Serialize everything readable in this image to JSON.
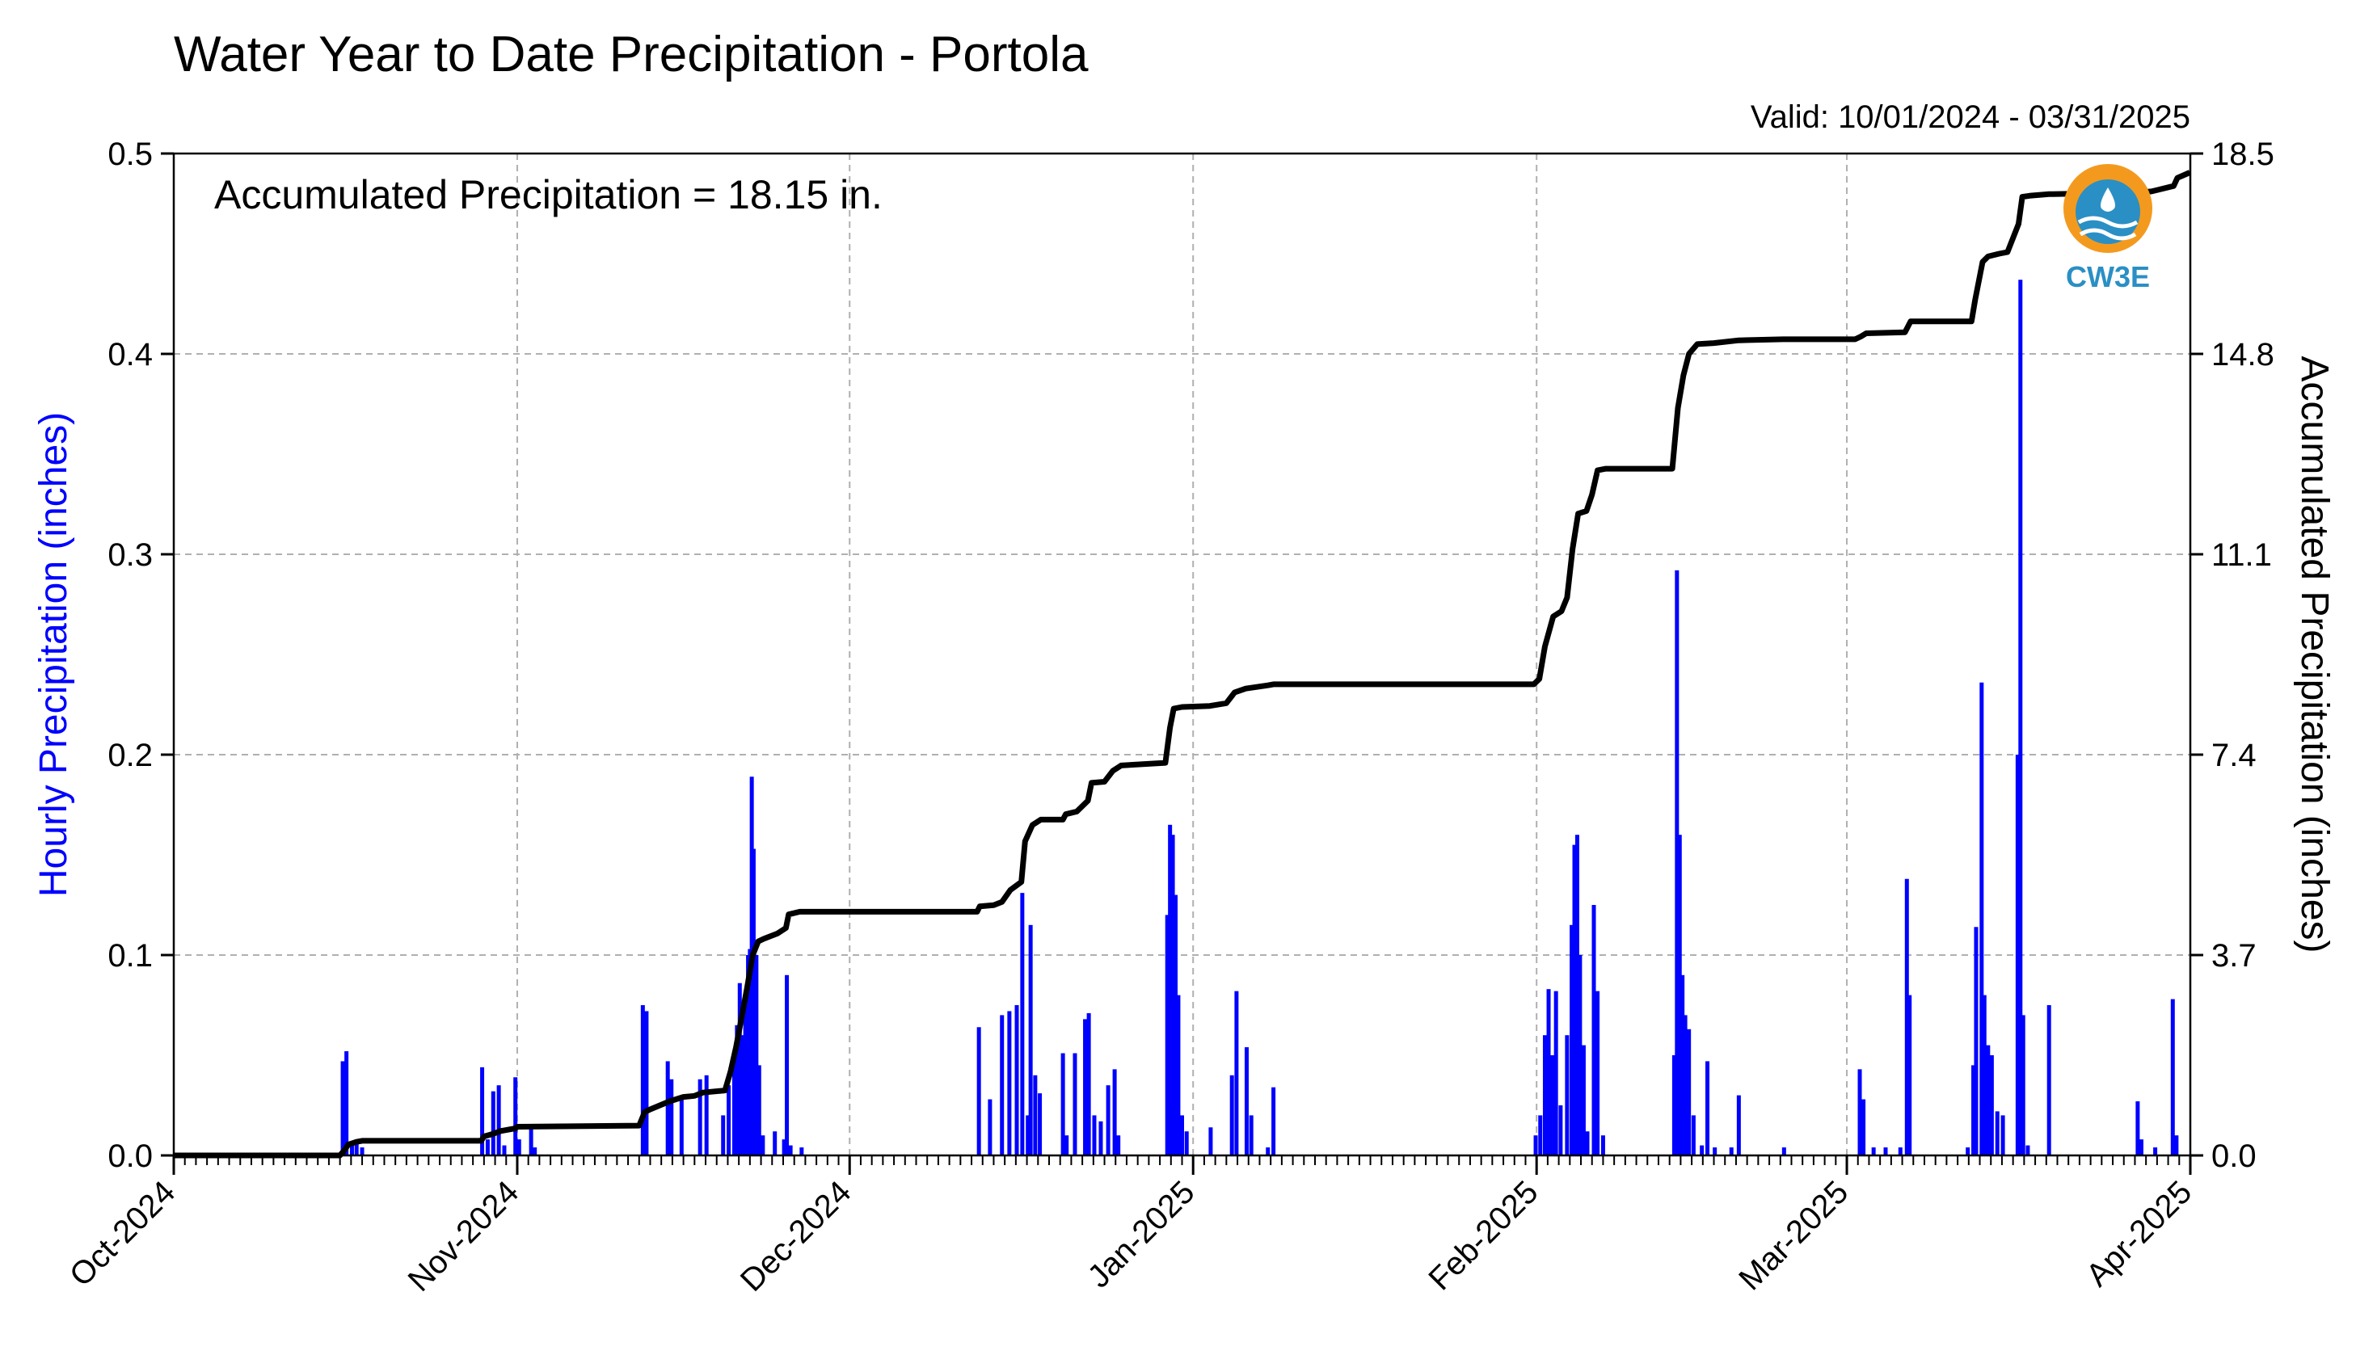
{
  "chart_data": {
    "type": "bar+line",
    "title": "Water Year to Date Precipitation - Portola",
    "valid_range": "Valid: 10/01/2024 - 03/31/2025",
    "annotation": "Accumulated Precipitation = 18.15 in.",
    "logo_text": "CW3E",
    "ylabel_left": "Hourly Precipitation (inches)",
    "ylabel_right": "Accumulated Precipitation (inches)",
    "xlabel": "",
    "xlim": [
      "2024-10-01",
      "2025-04-01"
    ],
    "ylim_left": [
      0,
      0.5
    ],
    "ylim_right": [
      0,
      18.5
    ],
    "x_ticks": [
      "Oct-2024",
      "Nov-2024",
      "Dec-2024",
      "Jan-2025",
      "Feb-2025",
      "Mar-2025",
      "Apr-2025"
    ],
    "y_ticks_left": [
      "0.0",
      "0.1",
      "0.2",
      "0.3",
      "0.4",
      "0.5"
    ],
    "y_ticks_right": [
      "0.0",
      "3.7",
      "7.4",
      "11.1",
      "14.8",
      "18.5"
    ],
    "grid": true,
    "colors": {
      "hourly": "#0000ff",
      "accumulated": "#000000",
      "grid": "#b0b0b0",
      "logo_orange": "#f39a1e",
      "logo_blue": "#2a8fc4"
    },
    "series": [
      {
        "name": "Hourly Precipitation",
        "axis": "left",
        "kind": "bar",
        "points": [
          [
            "2024-10-16 06:00",
            0.047
          ],
          [
            "2024-10-16 14:00",
            0.052
          ],
          [
            "2024-10-17 02:00",
            0.006
          ],
          [
            "2024-10-17 12:00",
            0.008
          ],
          [
            "2024-10-18 00:00",
            0.004
          ],
          [
            "2024-10-28 20:00",
            0.044
          ],
          [
            "2024-10-29 08:00",
            0.008
          ],
          [
            "2024-10-29 20:00",
            0.032
          ],
          [
            "2024-10-30 08:00",
            0.035
          ],
          [
            "2024-10-30 20:00",
            0.005
          ],
          [
            "2024-10-31 20:00",
            0.039
          ],
          [
            "2024-11-01 04:00",
            0.008
          ],
          [
            "2024-11-02 06:00",
            0.014
          ],
          [
            "2024-11-02 14:00",
            0.004
          ],
          [
            "2024-11-12 08:00",
            0.075
          ],
          [
            "2024-11-12 16:00",
            0.072
          ],
          [
            "2024-11-14 14:00",
            0.047
          ],
          [
            "2024-11-14 22:00",
            0.038
          ],
          [
            "2024-11-15 20:00",
            0.028
          ],
          [
            "2024-11-17 12:00",
            0.038
          ],
          [
            "2024-11-18 02:00",
            0.04
          ],
          [
            "2024-11-19 14:00",
            0.02
          ],
          [
            "2024-11-20 02:00",
            0.035
          ],
          [
            "2024-11-20 14:00",
            0.052
          ],
          [
            "2024-11-20 20:00",
            0.065
          ],
          [
            "2024-11-21 02:00",
            0.086
          ],
          [
            "2024-11-21 08:00",
            0.06
          ],
          [
            "2024-11-21 14:00",
            0.075
          ],
          [
            "2024-11-21 20:00",
            0.1
          ],
          [
            "2024-11-22 00:00",
            0.103
          ],
          [
            "2024-11-22 04:00",
            0.189
          ],
          [
            "2024-11-22 08:00",
            0.153
          ],
          [
            "2024-11-22 14:00",
            0.1
          ],
          [
            "2024-11-22 20:00",
            0.045
          ],
          [
            "2024-11-23 04:00",
            0.01
          ],
          [
            "2024-11-24 06:00",
            0.012
          ],
          [
            "2024-11-25 02:00",
            0.008
          ],
          [
            "2024-11-25 08:00",
            0.09
          ],
          [
            "2024-11-25 16:00",
            0.005
          ],
          [
            "2024-11-26 16:00",
            0.004
          ],
          [
            "2024-12-12 16:00",
            0.064
          ],
          [
            "2024-12-13 16:00",
            0.028
          ],
          [
            "2024-12-14 18:00",
            0.07
          ],
          [
            "2024-12-15 10:00",
            0.072
          ],
          [
            "2024-12-16 02:00",
            0.075
          ],
          [
            "2024-12-16 14:00",
            0.131
          ],
          [
            "2024-12-17 02:00",
            0.02
          ],
          [
            "2024-12-17 08:00",
            0.115
          ],
          [
            "2024-12-17 18:00",
            0.04
          ],
          [
            "2024-12-18 04:00",
            0.031
          ],
          [
            "2024-12-20 06:00",
            0.051
          ],
          [
            "2024-12-20 14:00",
            0.01
          ],
          [
            "2024-12-21 08:00",
            0.051
          ],
          [
            "2024-12-22 06:00",
            0.068
          ],
          [
            "2024-12-22 14:00",
            0.071
          ],
          [
            "2024-12-23 02:00",
            0.02
          ],
          [
            "2024-12-23 16:00",
            0.017
          ],
          [
            "2024-12-24 08:00",
            0.035
          ],
          [
            "2024-12-24 22:00",
            0.043
          ],
          [
            "2024-12-25 06:00",
            0.01
          ],
          [
            "2024-12-29 16:00",
            0.12
          ],
          [
            "2024-12-29 22:00",
            0.165
          ],
          [
            "2024-12-30 04:00",
            0.16
          ],
          [
            "2024-12-30 10:00",
            0.13
          ],
          [
            "2024-12-30 16:00",
            0.08
          ],
          [
            "2024-12-31 00:00",
            0.02
          ],
          [
            "2024-12-31 10:00",
            0.012
          ],
          [
            "2025-01-02 14:00",
            0.014
          ],
          [
            "2025-01-04 12:00",
            0.04
          ],
          [
            "2025-01-04 22:00",
            0.082
          ],
          [
            "2025-01-05 20:00",
            0.054
          ],
          [
            "2025-01-06 06:00",
            0.02
          ],
          [
            "2025-01-07 18:00",
            0.004
          ],
          [
            "2025-01-08 06:00",
            0.034
          ],
          [
            "2025-01-31 22:00",
            0.01
          ],
          [
            "2025-02-01 08:00",
            0.02
          ],
          [
            "2025-02-01 18:00",
            0.06
          ],
          [
            "2025-02-02 02:00",
            0.083
          ],
          [
            "2025-02-02 10:00",
            0.05
          ],
          [
            "2025-02-02 18:00",
            0.082
          ],
          [
            "2025-02-03 04:00",
            0.025
          ],
          [
            "2025-02-03 18:00",
            0.06
          ],
          [
            "2025-02-04 04:00",
            0.115
          ],
          [
            "2025-02-04 10:00",
            0.155
          ],
          [
            "2025-02-04 16:00",
            0.16
          ],
          [
            "2025-02-04 22:00",
            0.1
          ],
          [
            "2025-02-05 06:00",
            0.055
          ],
          [
            "2025-02-05 14:00",
            0.012
          ],
          [
            "2025-02-06 04:00",
            0.125
          ],
          [
            "2025-02-06 12:00",
            0.082
          ],
          [
            "2025-02-07 00:00",
            0.01
          ],
          [
            "2025-02-13 10:00",
            0.05
          ],
          [
            "2025-02-13 16:00",
            0.292
          ],
          [
            "2025-02-13 22:00",
            0.16
          ],
          [
            "2025-02-14 04:00",
            0.09
          ],
          [
            "2025-02-14 10:00",
            0.07
          ],
          [
            "2025-02-14 18:00",
            0.063
          ],
          [
            "2025-02-15 04:00",
            0.02
          ],
          [
            "2025-02-15 22:00",
            0.005
          ],
          [
            "2025-02-16 10:00",
            0.047
          ],
          [
            "2025-02-17 02:00",
            0.004
          ],
          [
            "2025-02-18 14:00",
            0.004
          ],
          [
            "2025-02-19 06:00",
            0.03
          ],
          [
            "2025-02-23 08:00",
            0.004
          ],
          [
            "2025-03-02 04:00",
            0.043
          ],
          [
            "2025-03-02 12:00",
            0.028
          ],
          [
            "2025-03-03 10:00",
            0.004
          ],
          [
            "2025-03-04 12:00",
            0.004
          ],
          [
            "2025-03-05 20:00",
            0.004
          ],
          [
            "2025-03-06 10:00",
            0.138
          ],
          [
            "2025-03-06 16:00",
            0.08
          ],
          [
            "2025-03-11 22:00",
            0.004
          ],
          [
            "2025-03-12 10:00",
            0.045
          ],
          [
            "2025-03-12 16:00",
            0.114
          ],
          [
            "2025-03-13 04:00",
            0.236
          ],
          [
            "2025-03-13 10:00",
            0.08
          ],
          [
            "2025-03-13 18:00",
            0.055
          ],
          [
            "2025-03-14 02:00",
            0.05
          ],
          [
            "2025-03-14 14:00",
            0.022
          ],
          [
            "2025-03-15 02:00",
            0.02
          ],
          [
            "2025-03-16 10:00",
            0.2
          ],
          [
            "2025-03-16 16:00",
            0.437
          ],
          [
            "2025-03-16 22:00",
            0.07
          ],
          [
            "2025-03-17 08:00",
            0.005
          ],
          [
            "2025-03-19 06:00",
            0.075
          ],
          [
            "2025-03-27 06:00",
            0.027
          ],
          [
            "2025-03-27 14:00",
            0.008
          ],
          [
            "2025-03-28 20:00",
            0.004
          ],
          [
            "2025-03-30 10:00",
            0.078
          ],
          [
            "2025-03-30 18:00",
            0.01
          ]
        ]
      },
      {
        "name": "Accumulated Precipitation",
        "axis": "right",
        "kind": "step",
        "points": [
          [
            "2024-10-01 00:00",
            0.0
          ],
          [
            "2024-10-16 00:00",
            0.0
          ],
          [
            "2024-10-16 10:00",
            0.1
          ],
          [
            "2024-10-16 18:00",
            0.2
          ],
          [
            "2024-10-17 12:00",
            0.25
          ],
          [
            "2024-10-18 00:00",
            0.27
          ],
          [
            "2024-10-28 18:00",
            0.27
          ],
          [
            "2024-10-29 00:00",
            0.35
          ],
          [
            "2024-10-29 20:00",
            0.4
          ],
          [
            "2024-10-30 12:00",
            0.45
          ],
          [
            "2024-10-31 20:00",
            0.5
          ],
          [
            "2024-11-01 00:00",
            0.53
          ],
          [
            "2024-11-12 00:00",
            0.55
          ],
          [
            "2024-11-12 12:00",
            0.8
          ],
          [
            "2024-11-13 00:00",
            0.85
          ],
          [
            "2024-11-14 18:00",
            1.0
          ],
          [
            "2024-11-16 00:00",
            1.08
          ],
          [
            "2024-11-17 00:00",
            1.1
          ],
          [
            "2024-11-17 18:00",
            1.16
          ],
          [
            "2024-11-19 18:00",
            1.2
          ],
          [
            "2024-11-20 06:00",
            1.55
          ],
          [
            "2024-11-20 18:00",
            2.0
          ],
          [
            "2024-11-21 06:00",
            2.55
          ],
          [
            "2024-11-21 18:00",
            3.1
          ],
          [
            "2024-11-22 06:00",
            3.7
          ],
          [
            "2024-11-22 18:00",
            3.95
          ],
          [
            "2024-11-23 06:00",
            4.0
          ],
          [
            "2024-11-24 12:00",
            4.1
          ],
          [
            "2024-11-25 06:00",
            4.2
          ],
          [
            "2024-11-25 12:00",
            4.45
          ],
          [
            "2024-11-26 12:00",
            4.5
          ],
          [
            "2024-12-12 12:00",
            4.5
          ],
          [
            "2024-12-12 18:00",
            4.6
          ],
          [
            "2024-12-14 00:00",
            4.62
          ],
          [
            "2024-12-14 18:00",
            4.68
          ],
          [
            "2024-12-15 12:00",
            4.9
          ],
          [
            "2024-12-16 12:00",
            5.05
          ],
          [
            "2024-12-16 20:00",
            5.8
          ],
          [
            "2024-12-17 12:00",
            6.1
          ],
          [
            "2024-12-18 06:00",
            6.2
          ],
          [
            "2024-12-20 06:00",
            6.2
          ],
          [
            "2024-12-20 12:00",
            6.3
          ],
          [
            "2024-12-21 12:00",
            6.35
          ],
          [
            "2024-12-22 12:00",
            6.55
          ],
          [
            "2024-12-22 20:00",
            6.88
          ],
          [
            "2024-12-24 00:00",
            6.9
          ],
          [
            "2024-12-24 18:00",
            7.1
          ],
          [
            "2024-12-25 12:00",
            7.2
          ],
          [
            "2024-12-29 12:00",
            7.25
          ],
          [
            "2024-12-29 22:00",
            7.9
          ],
          [
            "2024-12-30 06:00",
            8.25
          ],
          [
            "2024-12-31 00:00",
            8.28
          ],
          [
            "2025-01-02 12:00",
            8.3
          ],
          [
            "2025-01-04 00:00",
            8.35
          ],
          [
            "2025-01-04 18:00",
            8.55
          ],
          [
            "2025-01-05 18:00",
            8.62
          ],
          [
            "2025-01-07 18:00",
            8.68
          ],
          [
            "2025-01-08 06:00",
            8.7
          ],
          [
            "2025-01-31 18:00",
            8.7
          ],
          [
            "2025-02-01 06:00",
            8.8
          ],
          [
            "2025-02-01 18:00",
            9.4
          ],
          [
            "2025-02-02 12:00",
            9.95
          ],
          [
            "2025-02-03 06:00",
            10.05
          ],
          [
            "2025-02-03 18:00",
            10.3
          ],
          [
            "2025-02-04 06:00",
            11.2
          ],
          [
            "2025-02-04 18:00",
            11.85
          ],
          [
            "2025-02-05 12:00",
            11.9
          ],
          [
            "2025-02-06 00:00",
            12.2
          ],
          [
            "2025-02-06 12:00",
            12.65
          ],
          [
            "2025-02-07 06:00",
            12.68
          ],
          [
            "2025-02-13 06:00",
            12.68
          ],
          [
            "2025-02-13 18:00",
            13.8
          ],
          [
            "2025-02-14 06:00",
            14.4
          ],
          [
            "2025-02-14 18:00",
            14.8
          ],
          [
            "2025-02-15 12:00",
            14.98
          ],
          [
            "2025-02-17 00:00",
            15.0
          ],
          [
            "2025-02-19 06:00",
            15.05
          ],
          [
            "2025-02-23 06:00",
            15.07
          ],
          [
            "2025-03-01 18:00",
            15.07
          ],
          [
            "2025-03-02 06:00",
            15.12
          ],
          [
            "2025-03-02 18:00",
            15.18
          ],
          [
            "2025-03-06 06:00",
            15.2
          ],
          [
            "2025-03-06 18:00",
            15.4
          ],
          [
            "2025-03-12 06:00",
            15.4
          ],
          [
            "2025-03-12 14:00",
            15.8
          ],
          [
            "2025-03-13 06:00",
            16.5
          ],
          [
            "2025-03-13 18:00",
            16.6
          ],
          [
            "2025-03-14 18:00",
            16.65
          ],
          [
            "2025-03-15 12:00",
            16.68
          ],
          [
            "2025-03-16 12:00",
            17.2
          ],
          [
            "2025-03-16 20:00",
            17.7
          ],
          [
            "2025-03-17 12:00",
            17.72
          ],
          [
            "2025-03-19 06:00",
            17.75
          ],
          [
            "2025-03-27 06:00",
            17.78
          ],
          [
            "2025-03-28 12:00",
            17.8
          ],
          [
            "2025-03-30 12:00",
            17.9
          ],
          [
            "2025-03-30 20:00",
            18.05
          ],
          [
            "2025-03-31 23:00",
            18.15
          ]
        ]
      }
    ]
  }
}
